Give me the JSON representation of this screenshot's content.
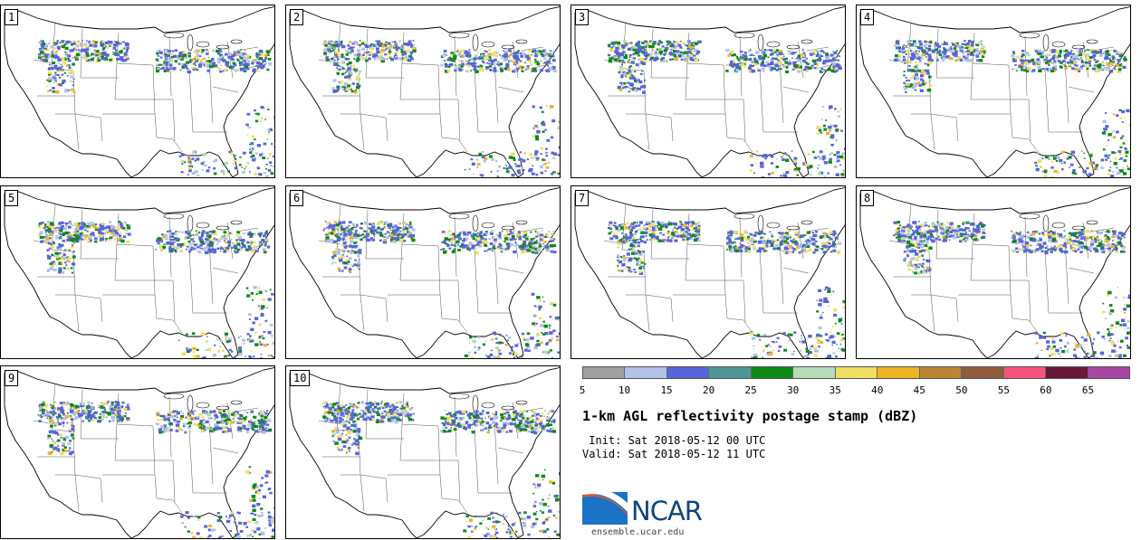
{
  "panels": [
    {
      "label": "1"
    },
    {
      "label": "2"
    },
    {
      "label": "3"
    },
    {
      "label": "4"
    },
    {
      "label": "5"
    },
    {
      "label": "6"
    },
    {
      "label": "7"
    },
    {
      "label": "8"
    },
    {
      "label": "9"
    },
    {
      "label": "10"
    }
  ],
  "colorbar": {
    "colors": [
      "#a0a0a0",
      "#b3c0e8",
      "#5865d8",
      "#4e9596",
      "#0d8a16",
      "#b7dbb6",
      "#efdf62",
      "#eeb325",
      "#bb8534",
      "#8f5b3e",
      "#f5537c",
      "#6b1737",
      "#a946a5"
    ],
    "ticks": [
      "5",
      "10",
      "15",
      "20",
      "25",
      "30",
      "35",
      "40",
      "45",
      "50",
      "55",
      "60",
      "65"
    ]
  },
  "title": "1-km AGL reflectivity postage stamp (dBZ)",
  "init": " Init: Sat 2018-05-12 00 UTC",
  "valid": "Valid: Sat 2018-05-12 11 UTC",
  "logo": {
    "text": "NCAR",
    "url": "ensemble.ucar.edu"
  }
}
